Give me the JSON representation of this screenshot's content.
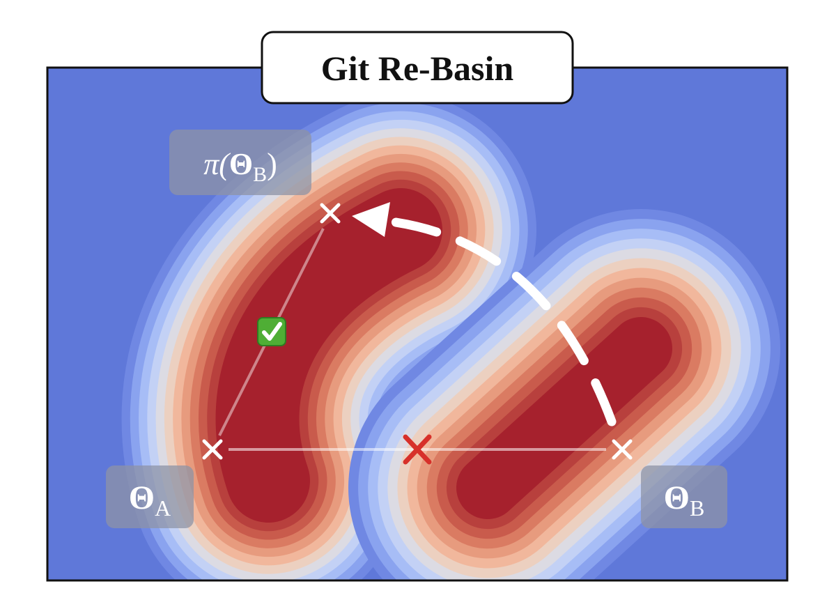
{
  "title": "Git Re-Basin",
  "labels": {
    "permuted": {
      "prefix": "π(",
      "symbol": "Θ",
      "subscript": "B",
      "suffix": ")"
    },
    "model_a": {
      "symbol": "Θ",
      "subscript": "A"
    },
    "model_b": {
      "symbol": "Θ",
      "subscript": "B"
    }
  }
}
